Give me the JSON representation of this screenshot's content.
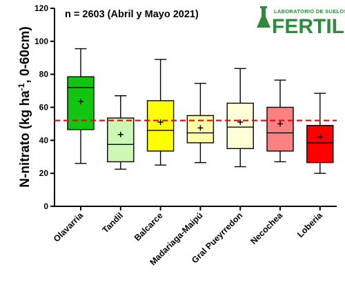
{
  "chart_data": {
    "type": "box",
    "title": "n = 2603 (Abril y Mayo 2021)",
    "ylabel": "N-nitrato (kg ha⁻¹, 0-60cm)",
    "ylim": [
      0,
      120
    ],
    "yticks": [
      0,
      20,
      40,
      60,
      80,
      100,
      120
    ],
    "reference_line": 52,
    "reference_color": "#dd1111",
    "categories": [
      "Olavarria",
      "Tandil",
      "Balcarce",
      "Madariaga-Maipú",
      "Gral Pueyrredon",
      "Necochea",
      "Loberia"
    ],
    "boxes": [
      {
        "min": 26,
        "q1": 46.5,
        "median": 72,
        "q3": 78.5,
        "max": 95.5,
        "mean": 63.5,
        "color": "#11c511"
      },
      {
        "min": 22.5,
        "q1": 27,
        "median": 37.5,
        "q3": 53.5,
        "max": 67,
        "mean": 43.5,
        "color": "#ccf7b4"
      },
      {
        "min": 25,
        "q1": 33.5,
        "median": 46,
        "q3": 64,
        "max": 89,
        "mean": 51,
        "color": "#ffff00"
      },
      {
        "min": 26.5,
        "q1": 38.5,
        "median": 44.5,
        "q3": 55,
        "max": 74.5,
        "mean": 47.5,
        "color": "#ffffa8"
      },
      {
        "min": 24,
        "q1": 35,
        "median": 48,
        "q3": 62.5,
        "max": 83.5,
        "mean": 51,
        "color": "#ffffd8"
      },
      {
        "min": 27,
        "q1": 33.5,
        "median": 44.5,
        "q3": 60,
        "max": 76.5,
        "mean": 50,
        "color": "#ff8080"
      },
      {
        "min": 20,
        "q1": 26.5,
        "median": 38.5,
        "q3": 49,
        "max": 68.5,
        "mean": 42,
        "color": "#ff0000"
      }
    ]
  },
  "logo": {
    "small_text": "LABORATORIO DE SUELOS",
    "big_text": "FERTILAB",
    "color": "#2e8b3e"
  }
}
